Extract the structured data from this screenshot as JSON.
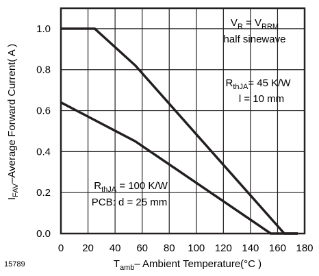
{
  "figure_id": "15789",
  "chart_data": {
    "type": "line",
    "xlabel": {
      "main": "T",
      "sub": "amb",
      "rest": "– Ambient Temperature(°C )"
    },
    "ylabel": {
      "main": "I",
      "sub": "FAV",
      "rest": "–Average  Forward Current( A )"
    },
    "xlim": [
      0,
      180
    ],
    "ylim": [
      0,
      1.1
    ],
    "xticks": [
      0,
      20,
      40,
      60,
      80,
      100,
      120,
      140,
      160,
      180
    ],
    "xtick_labels": [
      "0",
      "20",
      "40",
      "60",
      "80",
      "100",
      "120",
      "140",
      "160",
      "180"
    ],
    "yticks": [
      0,
      0.2,
      0.4,
      0.6,
      0.8,
      1.0
    ],
    "ytick_labels": [
      "0.0",
      "0.2",
      "0.4",
      "0.6",
      "0.8",
      "1.0"
    ],
    "grid": true,
    "line_color": "#231f20",
    "series": [
      {
        "x": [
          0,
          25,
          55,
          165,
          175
        ],
        "y": [
          1.0,
          1.0,
          0.82,
          0.0,
          0.0
        ]
      },
      {
        "x": [
          0,
          55,
          155,
          175
        ],
        "y": [
          0.64,
          0.45,
          0.0,
          0.0
        ]
      }
    ],
    "annotations": {
      "condition": {
        "line1": {
          "a": "V",
          "a_sub": "R",
          "b": " = V",
          "b_sub": "RRM"
        },
        "line2": "half sinewave"
      },
      "upper_curve": {
        "line1": {
          "a": "R",
          "a_sub": "thJA",
          "b": "= 45 K/W"
        },
        "line2": "l = 10 mm"
      },
      "lower_curve": {
        "line1": {
          "a": "R",
          "a_sub": "thJA",
          "b": " = 100 K/W"
        },
        "line2": "PCB: d = 25 mm"
      }
    }
  }
}
